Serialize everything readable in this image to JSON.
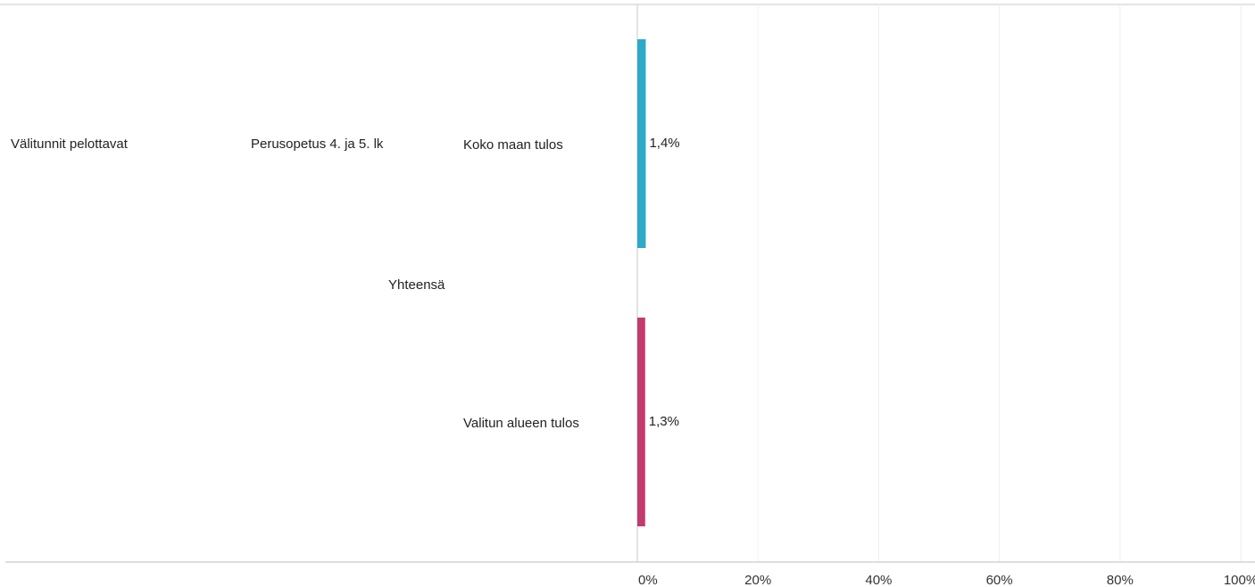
{
  "row_headers": {
    "measure": "Välitunnit pelottavat",
    "school_level": "Perusopetus 4. ja 5. lk",
    "group": "Yhteensä"
  },
  "chart_data": {
    "type": "bar",
    "orientation": "horizontal",
    "categories": [
      "Koko maan tulos",
      "Valitun alueen tulos"
    ],
    "values": [
      1.4,
      1.3
    ],
    "value_labels": [
      "1,4%",
      "1,3%"
    ],
    "colors": [
      "#2ea9c8",
      "#c23b6e"
    ],
    "xlim": [
      0,
      100
    ],
    "x_ticks": [
      "0%",
      "20%",
      "40%",
      "60%",
      "80%",
      "100%"
    ],
    "x_tick_values": [
      0,
      20,
      40,
      60,
      80,
      100
    ],
    "grid": true
  }
}
